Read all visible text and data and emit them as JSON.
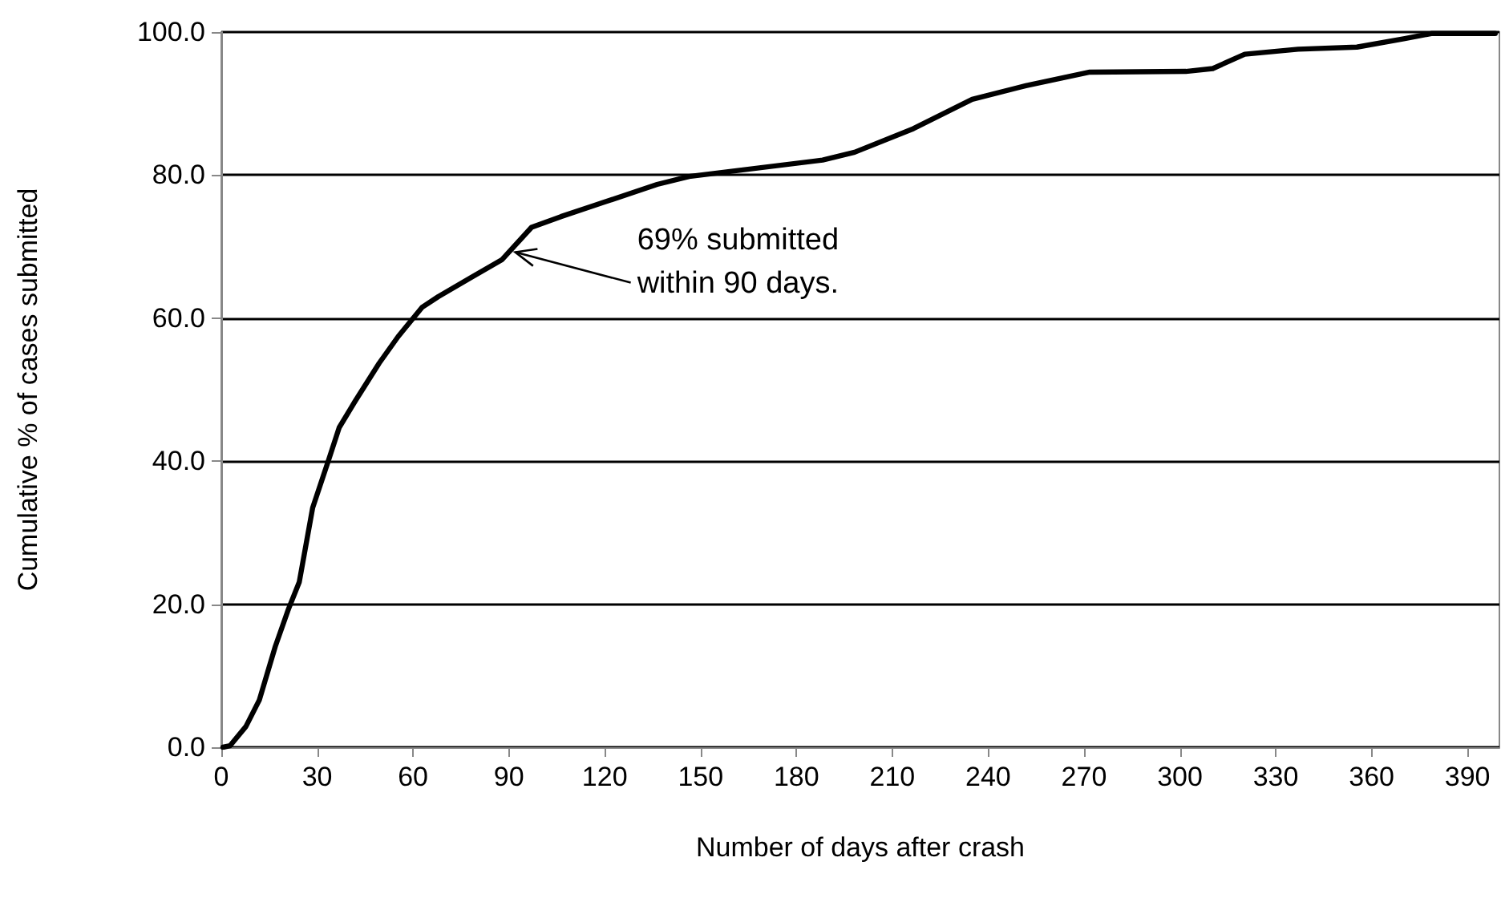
{
  "chart_data": {
    "type": "line",
    "xlabel": "Number of days after crash",
    "ylabel": "Cumulative % of cases submitted",
    "xlim": [
      0,
      400
    ],
    "xticks": [
      0,
      30,
      60,
      90,
      120,
      150,
      180,
      210,
      240,
      270,
      300,
      330,
      360,
      390
    ],
    "ylim": [
      0,
      100
    ],
    "yticks": [
      {
        "value": 0,
        "label": "0.0"
      },
      {
        "value": 20,
        "label": "20.0"
      },
      {
        "value": 40,
        "label": "40.0"
      },
      {
        "value": 60,
        "label": "60.0"
      },
      {
        "value": 80,
        "label": "80.0"
      },
      {
        "value": 100,
        "label": "100.0"
      }
    ],
    "grid": "y",
    "marker": "none",
    "line_style": "solid",
    "annotations": [
      {
        "text": "69% submitted\nwithin 90 days.",
        "x": 90,
        "y": 69
      }
    ],
    "series": [
      {
        "color": "#000000",
        "x": [
          0.5,
          2.7,
          7.7,
          11.9,
          16.9,
          21,
          24.4,
          28.6,
          33.6,
          36.9,
          41.9,
          49.4,
          55.3,
          62.8,
          67.9,
          77.9,
          87.9,
          97.1,
          106.3,
          119.7,
          136.4,
          146.4,
          188.2,
          198.2,
          216.6,
          235,
          251.8,
          271.8,
          301.9,
          310.3,
          320.3,
          337,
          355.4,
          370.4,
          378.7,
          398.7
        ],
        "values": [
          0,
          0.2,
          2.9,
          6.6,
          14.1,
          19.3,
          23.1,
          33.5,
          40.2,
          44.7,
          48.4,
          53.7,
          57.4,
          61.5,
          63,
          65.6,
          68.2,
          72.7,
          74.2,
          76.2,
          78.7,
          79.8,
          82.1,
          83.2,
          86.5,
          90.6,
          92.5,
          94.4,
          94.5,
          94.9,
          96.9,
          97.6,
          97.9,
          99.1,
          99.8,
          99.8
        ]
      }
    ]
  }
}
